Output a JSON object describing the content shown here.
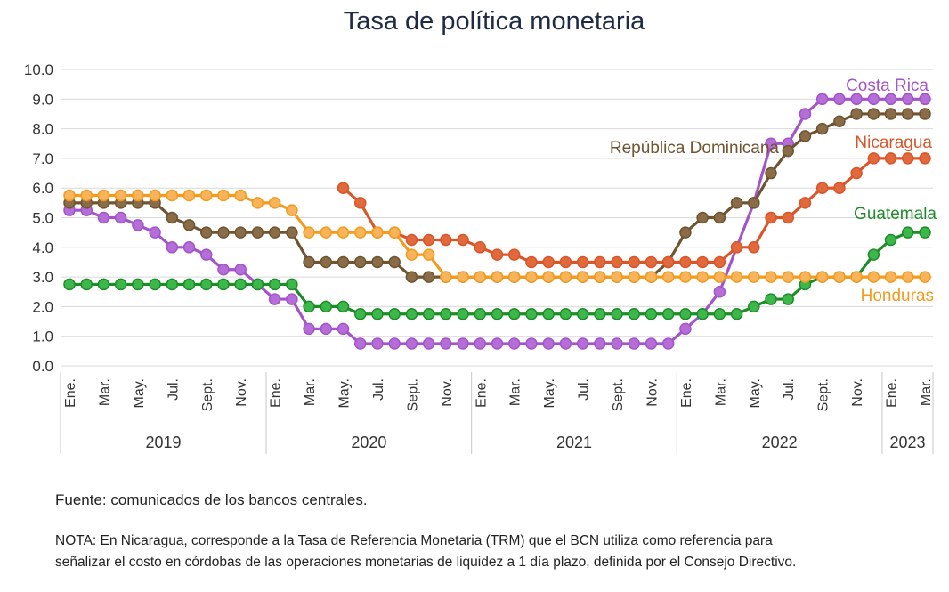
{
  "chart_data": {
    "type": "line",
    "title": "Tasa de política monetaria",
    "ylim": [
      0,
      10
    ],
    "yticks": [
      "0.0",
      "1.0",
      "2.0",
      "3.0",
      "4.0",
      "5.0",
      "6.0",
      "7.0",
      "8.0",
      "9.0",
      "10.0"
    ],
    "grid": true,
    "month_ticks": [
      "Ene.",
      "Mar.",
      "May.",
      "Jul.",
      "Sept.",
      "Nov.",
      "Ene.",
      "Mar.",
      "May.",
      "Jul.",
      "Sept.",
      "Nov.",
      "Ene.",
      "Mar.",
      "May.",
      "Jul.",
      "Sept.",
      "Nov.",
      "Ene.",
      "Mar.",
      "May.",
      "Jul.",
      "Sept.",
      "Nov.",
      "Ene.",
      "Mar."
    ],
    "years": [
      {
        "label": "2019",
        "months": 12
      },
      {
        "label": "2020",
        "months": 12
      },
      {
        "label": "2021",
        "months": 12
      },
      {
        "label": "2022",
        "months": 12
      },
      {
        "label": "2023",
        "months": 3
      }
    ],
    "series": [
      {
        "name": "Costa Rica",
        "color": "#a355c8",
        "marker": "#b56dd8",
        "values": [
          5.25,
          5.25,
          5.0,
          5.0,
          4.75,
          4.5,
          4.0,
          4.0,
          3.75,
          3.25,
          3.25,
          2.75,
          2.25,
          2.25,
          1.25,
          1.25,
          1.25,
          0.75,
          0.75,
          0.75,
          0.75,
          0.75,
          0.75,
          0.75,
          0.75,
          0.75,
          0.75,
          0.75,
          0.75,
          0.75,
          0.75,
          0.75,
          0.75,
          0.75,
          0.75,
          0.75,
          1.25,
          1.75,
          2.5,
          4.0,
          5.5,
          7.5,
          7.5,
          8.5,
          9.0,
          9.0,
          9.0,
          9.0,
          9.0,
          9.0,
          9.0
        ]
      },
      {
        "name": "República Dominicana",
        "color": "#6e5430",
        "marker": "#8a6c48",
        "values": [
          5.5,
          5.5,
          5.5,
          5.5,
          5.5,
          5.5,
          5.0,
          4.75,
          4.5,
          4.5,
          4.5,
          4.5,
          4.5,
          4.5,
          3.5,
          3.5,
          3.5,
          3.5,
          3.5,
          3.5,
          3.0,
          3.0,
          3.0,
          3.0,
          3.0,
          3.0,
          3.0,
          3.0,
          3.0,
          3.0,
          3.0,
          3.0,
          3.0,
          3.0,
          3.0,
          3.5,
          4.5,
          5.0,
          5.0,
          5.5,
          5.5,
          6.5,
          7.25,
          7.75,
          8.0,
          8.25,
          8.5,
          8.5,
          8.5,
          8.5,
          8.5
        ]
      },
      {
        "name": "Nicaragua",
        "color": "#d9552a",
        "marker": "#e06a3c",
        "values": [
          null,
          null,
          null,
          null,
          null,
          null,
          null,
          null,
          null,
          null,
          null,
          null,
          null,
          null,
          null,
          null,
          6.0,
          5.5,
          4.5,
          4.5,
          4.25,
          4.25,
          4.25,
          4.25,
          4.0,
          3.75,
          3.75,
          3.5,
          3.5,
          3.5,
          3.5,
          3.5,
          3.5,
          3.5,
          3.5,
          3.5,
          3.5,
          3.5,
          3.5,
          4.0,
          4.0,
          5.0,
          5.0,
          5.5,
          6.0,
          6.0,
          6.5,
          7.0,
          7.0,
          7.0,
          7.0
        ]
      },
      {
        "name": "Guatemala",
        "color": "#1f8c2a",
        "marker": "#3cb84a",
        "values": [
          2.75,
          2.75,
          2.75,
          2.75,
          2.75,
          2.75,
          2.75,
          2.75,
          2.75,
          2.75,
          2.75,
          2.75,
          2.75,
          2.75,
          2.0,
          2.0,
          2.0,
          1.75,
          1.75,
          1.75,
          1.75,
          1.75,
          1.75,
          1.75,
          1.75,
          1.75,
          1.75,
          1.75,
          1.75,
          1.75,
          1.75,
          1.75,
          1.75,
          1.75,
          1.75,
          1.75,
          1.75,
          1.75,
          1.75,
          1.75,
          2.0,
          2.25,
          2.25,
          2.75,
          3.0,
          3.0,
          3.0,
          3.75,
          4.25,
          4.5,
          4.5
        ]
      },
      {
        "name": "Honduras",
        "color": "#f29b1f",
        "marker": "#f7b45a",
        "values": [
          5.75,
          5.75,
          5.75,
          5.75,
          5.75,
          5.75,
          5.75,
          5.75,
          5.75,
          5.75,
          5.75,
          5.5,
          5.5,
          5.25,
          4.5,
          4.5,
          4.5,
          4.5,
          4.5,
          4.5,
          3.75,
          3.75,
          3.0,
          3.0,
          3.0,
          3.0,
          3.0,
          3.0,
          3.0,
          3.0,
          3.0,
          3.0,
          3.0,
          3.0,
          3.0,
          3.0,
          3.0,
          3.0,
          3.0,
          3.0,
          3.0,
          3.0,
          3.0,
          3.0,
          3.0,
          3.0,
          3.0,
          3.0,
          3.0,
          3.0,
          3.0
        ]
      }
    ]
  },
  "footer": {
    "source": "Fuente: comunicados de los bancos centrales.",
    "note_line1": "NOTA: En Nicaragua, corresponde a la Tasa de Referencia Monetaria (TRM) que el BCN utiliza como referencia para",
    "note_line2": "señalizar el costo en córdobas de las operaciones monetarias de liquidez a 1 día plazo, definida por el Consejo Directivo."
  }
}
